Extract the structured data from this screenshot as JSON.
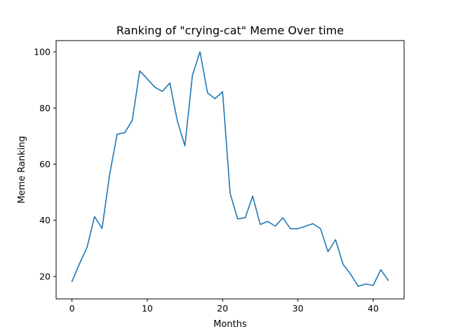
{
  "chart_data": {
    "type": "line",
    "title": "Ranking of \"crying-cat\" Meme Over time",
    "xlabel": "Months",
    "ylabel": "Meme Ranking",
    "xlim": [
      -2.1,
      44.1
    ],
    "ylim": [
      12,
      104
    ],
    "xticks": [
      0,
      10,
      20,
      30,
      40
    ],
    "yticks": [
      20,
      40,
      60,
      80,
      100
    ],
    "grid": false,
    "series": [
      {
        "color": "#1f77b4",
        "x": [
          0,
          1,
          2,
          3,
          4,
          5,
          6,
          7,
          8,
          9,
          10,
          11,
          12,
          13,
          14,
          15,
          16,
          17,
          18,
          19,
          20,
          21,
          22,
          23,
          24,
          25,
          26,
          27,
          28,
          29,
          30,
          31,
          32,
          33,
          34,
          35,
          36,
          37,
          38,
          39,
          40,
          41,
          42
        ],
        "values": [
          18.2,
          24.5,
          30.3,
          41.3,
          37.1,
          56.2,
          70.7,
          71.2,
          75.5,
          93.2,
          90.4,
          87.4,
          85.9,
          88.9,
          75.3,
          66.5,
          91.7,
          100.0,
          85.4,
          83.3,
          85.8,
          49.6,
          40.5,
          40.9,
          48.6,
          38.5,
          39.6,
          37.9,
          40.9,
          37.0,
          37.0,
          37.9,
          38.8,
          37.0,
          28.8,
          33.1,
          24.3,
          20.8,
          16.5,
          17.3,
          16.8,
          22.4,
          18.6
        ]
      }
    ]
  }
}
